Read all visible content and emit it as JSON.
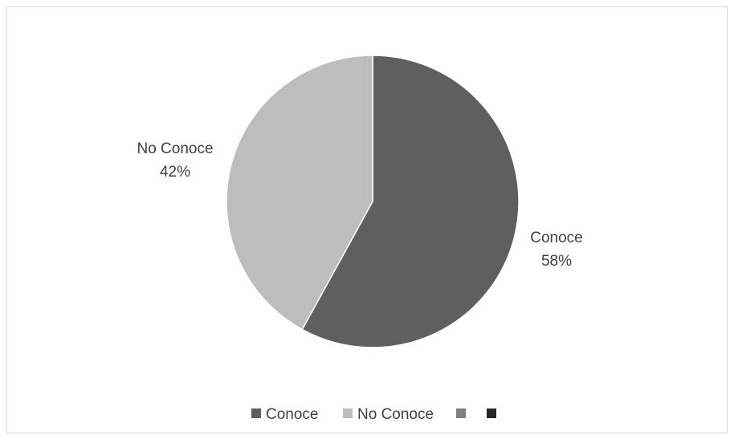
{
  "chart_data": {
    "type": "pie",
    "title": "",
    "slices": [
      {
        "label": "Conoce",
        "value": 58,
        "value_label": "58%",
        "color": "#5f5f5f"
      },
      {
        "label": "No Conoce",
        "value": 42,
        "value_label": "42%",
        "color": "#bdbdbd"
      }
    ],
    "legend": {
      "position": "bottom",
      "entries": [
        {
          "label": "Conoce",
          "color": "#5f5f5f"
        },
        {
          "label": "No Conoce",
          "color": "#bdbdbd"
        },
        {
          "label": "",
          "color": "#7f7f7f"
        },
        {
          "label": "",
          "color": "#262626"
        }
      ]
    }
  }
}
